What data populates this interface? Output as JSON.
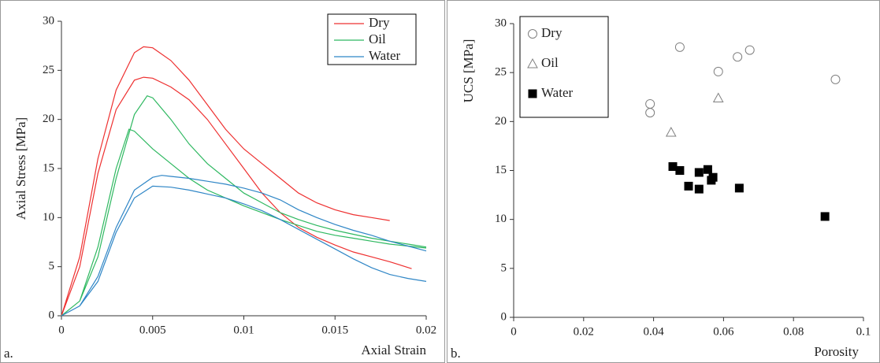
{
  "chart_data": [
    {
      "type": "line",
      "panel_label": "a.",
      "x_label": "Axial Strain",
      "y_label": "Axial Stress [MPa]",
      "xlim": [
        0,
        0.02
      ],
      "xticks": [
        0,
        0.005,
        0.01,
        0.015,
        0.02
      ],
      "ylim": [
        0,
        30
      ],
      "yticks": [
        0,
        5,
        10,
        15,
        20,
        25,
        30
      ],
      "grid": false,
      "legend": "upper right",
      "series": [
        {
          "name": "Dry",
          "color": "#ee3030",
          "x": [
            0,
            0.001,
            0.002,
            0.003,
            0.004,
            0.0045,
            0.005,
            0.006,
            0.007,
            0.008,
            0.009,
            0.01,
            0.011,
            0.012,
            0.013,
            0.014,
            0.015,
            0.016,
            0.017,
            0.018,
            null,
            0,
            0.001,
            0.002,
            0.003,
            0.004,
            0.0045,
            0.005,
            0.006,
            0.007,
            0.008,
            0.009,
            0.01,
            0.011,
            0.012,
            0.013,
            0.014,
            0.015,
            0.016,
            0.017,
            0.018,
            0.0192
          ],
          "values": [
            0,
            6,
            16,
            23,
            26.8,
            27.4,
            27.3,
            26,
            24,
            21.5,
            19,
            17,
            15.5,
            14,
            12.5,
            11.5,
            10.8,
            10.3,
            10,
            9.7,
            null,
            0,
            5,
            14.5,
            21,
            24,
            24.3,
            24.2,
            23.3,
            22,
            20,
            17.5,
            15,
            12.5,
            10.5,
            9,
            8,
            7.2,
            6.5,
            6,
            5.5,
            4.8
          ]
        },
        {
          "name": "Oil",
          "color": "#2eb860",
          "x": [
            0,
            0.001,
            0.002,
            0.003,
            0.004,
            0.0047,
            0.005,
            0.006,
            0.007,
            0.008,
            0.009,
            0.01,
            0.011,
            0.012,
            0.013,
            0.014,
            0.015,
            0.016,
            0.017,
            0.018,
            0.019,
            0.02,
            null,
            0,
            0.001,
            0.002,
            0.003,
            0.0037,
            0.004,
            0.005,
            0.006,
            0.007,
            0.008,
            0.009,
            0.01,
            0.011,
            0.012,
            0.013,
            0.014,
            0.015,
            0.016,
            0.017,
            0.018,
            0.019,
            0.02
          ],
          "values": [
            0,
            1.5,
            6,
            14,
            20.5,
            22.4,
            22.2,
            20,
            17.5,
            15.5,
            14,
            12.5,
            11.5,
            10.5,
            9.8,
            9.2,
            8.7,
            8.3,
            7.9,
            7.6,
            7.3,
            7.0,
            null,
            0,
            1.5,
            7,
            15,
            19,
            18.8,
            17,
            15.5,
            14,
            12.8,
            12,
            11.2,
            10.5,
            9.8,
            9.2,
            8.6,
            8.2,
            7.9,
            7.6,
            7.3,
            7.1,
            6.9
          ]
        },
        {
          "name": "Water",
          "color": "#2f86c6",
          "x": [
            0,
            0.001,
            0.002,
            0.003,
            0.004,
            0.005,
            0.0055,
            0.006,
            0.007,
            0.008,
            0.009,
            0.01,
            0.011,
            0.012,
            0.013,
            0.014,
            0.015,
            0.016,
            0.017,
            0.018,
            0.019,
            0.02,
            null,
            0,
            0.001,
            0.002,
            0.003,
            0.004,
            0.005,
            0.006,
            0.007,
            0.008,
            0.009,
            0.01,
            0.011,
            0.012,
            0.013,
            0.014,
            0.015,
            0.016,
            0.017,
            0.018,
            0.019,
            0.02
          ],
          "values": [
            0,
            1,
            4,
            9,
            12.8,
            14.1,
            14.3,
            14.2,
            14,
            13.7,
            13.4,
            13,
            12.5,
            11.8,
            10.8,
            10,
            9.3,
            8.7,
            8.2,
            7.6,
            7.1,
            6.6,
            null,
            0,
            1,
            3.5,
            8.5,
            12,
            13.2,
            13.1,
            12.8,
            12.4,
            12,
            11.4,
            10.7,
            9.8,
            8.8,
            7.8,
            6.8,
            5.8,
            4.9,
            4.2,
            3.8,
            3.5
          ]
        }
      ]
    },
    {
      "type": "scatter",
      "panel_label": "b.",
      "x_label": "Porosity",
      "y_label": "UCS [MPa]",
      "xlim": [
        0,
        0.1
      ],
      "xticks": [
        0,
        0.02,
        0.04,
        0.06,
        0.08,
        0.1
      ],
      "ylim": [
        0,
        30
      ],
      "yticks": [
        0,
        5,
        10,
        15,
        20,
        25,
        30
      ],
      "grid": false,
      "legend": "upper left",
      "series": [
        {
          "name": "Dry",
          "marker": "circle",
          "color": "#808080",
          "x": [
            0.039,
            0.039,
            0.0475,
            0.0585,
            0.064,
            0.0675,
            0.092
          ],
          "values": [
            21.8,
            20.9,
            27.6,
            25.1,
            26.6,
            27.3,
            24.3
          ]
        },
        {
          "name": "Oil",
          "marker": "triangle",
          "color": "#808080",
          "x": [
            0.045,
            0.0585
          ],
          "values": [
            18.9,
            22.4
          ]
        },
        {
          "name": "Water",
          "marker": "square",
          "color": "#000000",
          "x": [
            0.0455,
            0.0475,
            0.05,
            0.053,
            0.053,
            0.0555,
            0.057,
            0.0565,
            0.0645,
            0.089
          ],
          "values": [
            15.4,
            15.0,
            13.4,
            14.8,
            13.1,
            15.1,
            14.3,
            14.0,
            13.2,
            10.3
          ]
        }
      ]
    }
  ]
}
